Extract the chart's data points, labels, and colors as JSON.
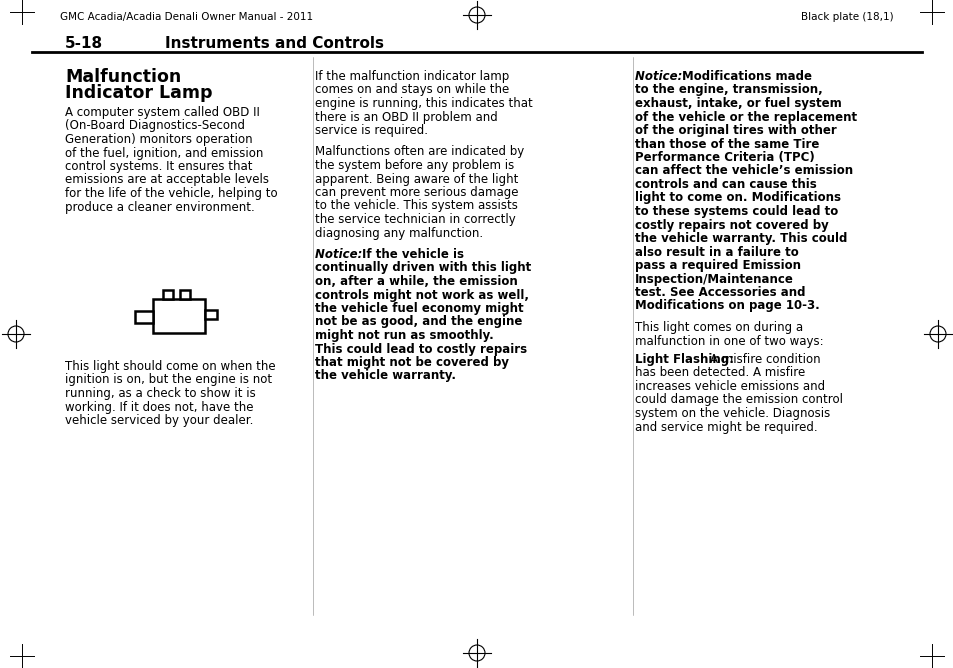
{
  "bg_color": "#ffffff",
  "text_color": "#000000",
  "header_left": "GMC Acadia/Acadia Denali Owner Manual - 2011",
  "header_right": "Black plate (18,1)",
  "section_number": "5-18",
  "section_title": "Instruments and Controls",
  "col1_title_line1": "Malfunction",
  "col1_title_line2": "Indicator Lamp",
  "col1_body": "A computer system called OBD II\n(On-Board Diagnostics-Second\nGeneration) monitors operation\nof the fuel, ignition, and emission\ncontrol systems. It ensures that\nemissions are at acceptable levels\nfor the life of the vehicle, helping to\nproduce a cleaner environment.",
  "col1_caption": "This light should come on when the\nignition is on, but the engine is not\nrunning, as a check to show it is\nworking. If it does not, have the\nvehicle serviced by your dealer.",
  "col2_para1": "If the malfunction indicator lamp\ncomes on and stays on while the\nengine is running, this indicates that\nthere is an OBD II problem and\nservice is required.",
  "col2_para2": "Malfunctions often are indicated by\nthe system before any problem is\napparent. Being aware of the light\ncan prevent more serious damage\nto the vehicle. This system assists\nthe service technician in correctly\ndiagnosing any malfunction.",
  "col2_notice_italic": "Notice:  ",
  "col2_notice_bold_line1": "If the vehicle is",
  "col2_notice_bold_rest": "continually driven with this light\non, after a while, the emission\ncontrols might not work as well,\nthe vehicle fuel economy might\nnot be as good, and the engine\nmight not run as smoothly.\nThis could lead to costly repairs\nthat might not be covered by\nthe vehicle warranty.",
  "col3_notice_italic": "Notice:  ",
  "col3_notice_bold_line1": "Modifications made",
  "col3_notice_bold_rest": "to the engine, transmission,\nexhaust, intake, or fuel system\nof the vehicle or the replacement\nof the original tires with other\nthan those of the same Tire\nPerformance Criteria (TPC)\ncan affect the vehicle’s emission\ncontrols and can cause this\nlight to come on. Modifications\nto these systems could lead to\ncostly repairs not covered by\nthe vehicle warranty. This could\nalso result in a failure to\npass a required Emission\nInspection/Maintenance\ntest. See Accessories and\nModifications on page 10-3.",
  "col3_para1": "This light comes on during a\nmalfunction in one of two ways:",
  "col3_lf_bold": "Light Flashing: ",
  "col3_lf_rest": " A misfire condition\nhas been detected. A misfire\nincreases vehicle emissions and\ncould damage the emission control\nsystem on the vehicle. Diagnosis\nand service might be required."
}
